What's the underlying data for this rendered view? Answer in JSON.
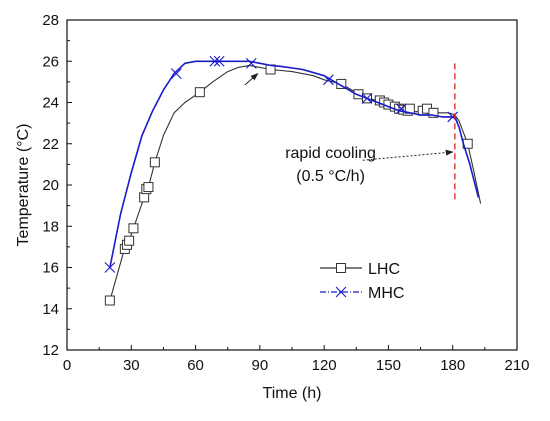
{
  "chart_data": {
    "type": "line",
    "title": "",
    "xlabel": "Time (h)",
    "ylabel": "Temperature (°C)",
    "xlim": [
      0,
      210
    ],
    "ylim": [
      12,
      28
    ],
    "xticks": [
      0,
      30,
      60,
      90,
      120,
      150,
      180,
      210
    ],
    "yticks": [
      12,
      14,
      16,
      18,
      20,
      22,
      24,
      26,
      28
    ],
    "grid": false,
    "legend": "center-right",
    "series": [
      {
        "name": "LHC",
        "color": "#333333",
        "marker": "open-square",
        "points": [
          [
            20,
            14.4
          ],
          [
            23,
            15.5
          ],
          [
            26,
            16.6
          ],
          [
            27,
            16.9
          ],
          [
            28,
            17.1
          ],
          [
            29,
            17.3
          ],
          [
            31,
            17.9
          ],
          [
            35,
            19.1
          ],
          [
            36,
            19.4
          ],
          [
            37,
            19.8
          ],
          [
            38,
            19.9
          ],
          [
            41,
            21.1
          ],
          [
            45,
            22.4
          ],
          [
            50,
            23.5
          ],
          [
            55,
            24.0
          ],
          [
            62,
            24.5
          ],
          [
            68,
            25.0
          ],
          [
            75,
            25.5
          ],
          [
            80,
            25.7
          ],
          [
            85,
            25.8
          ],
          [
            95,
            25.6
          ],
          [
            105,
            25.5
          ],
          [
            115,
            25.3
          ],
          [
            120,
            25.1
          ],
          [
            128,
            24.9
          ],
          [
            133,
            24.6
          ],
          [
            136,
            24.4
          ],
          [
            140,
            24.2
          ],
          [
            145,
            24.1
          ],
          [
            148,
            24.0
          ],
          [
            150,
            23.9
          ],
          [
            153,
            23.8
          ],
          [
            155,
            23.7
          ],
          [
            158,
            23.65
          ],
          [
            160,
            23.6
          ],
          [
            163,
            23.55
          ],
          [
            165,
            23.6
          ],
          [
            168,
            23.6
          ],
          [
            170,
            23.5
          ],
          [
            174,
            23.5
          ],
          [
            178,
            23.5
          ],
          [
            181,
            23.4
          ],
          [
            183,
            23.1
          ],
          [
            187,
            22.0
          ],
          [
            190,
            20.6
          ],
          [
            193,
            19.1
          ]
        ],
        "markers": [
          [
            20,
            14.4
          ],
          [
            27,
            16.9
          ],
          [
            28,
            17.1
          ],
          [
            29,
            17.3
          ],
          [
            31,
            17.9
          ],
          [
            36,
            19.4
          ],
          [
            37,
            19.8
          ],
          [
            38,
            19.9
          ],
          [
            41,
            21.1
          ],
          [
            62,
            24.5
          ],
          [
            95,
            25.6
          ],
          [
            128,
            24.9
          ],
          [
            136,
            24.4
          ],
          [
            140,
            24.2
          ],
          [
            146,
            24.1
          ],
          [
            148,
            24.0
          ],
          [
            150,
            23.9
          ],
          [
            153,
            23.8
          ],
          [
            155,
            23.7
          ],
          [
            157,
            23.65
          ],
          [
            159,
            23.6
          ],
          [
            160,
            23.7
          ],
          [
            166,
            23.6
          ],
          [
            168,
            23.7
          ],
          [
            171,
            23.5
          ],
          [
            187,
            22.0
          ]
        ]
      },
      {
        "name": "MHC",
        "color": "#1a1acc",
        "marker": "x",
        "points": [
          [
            20,
            16.0
          ],
          [
            25,
            18.6
          ],
          [
            30,
            20.6
          ],
          [
            35,
            22.4
          ],
          [
            40,
            23.6
          ],
          [
            45,
            24.6
          ],
          [
            50,
            25.4
          ],
          [
            55,
            25.9
          ],
          [
            60,
            26.0
          ],
          [
            65,
            26.0
          ],
          [
            70,
            26.0
          ],
          [
            75,
            26.0
          ],
          [
            80,
            26.0
          ],
          [
            85,
            26.0
          ],
          [
            90,
            25.9
          ],
          [
            95,
            25.8
          ],
          [
            100,
            25.75
          ],
          [
            110,
            25.6
          ],
          [
            120,
            25.3
          ],
          [
            125,
            25.0
          ],
          [
            130,
            24.7
          ],
          [
            135,
            24.4
          ],
          [
            140,
            24.2
          ],
          [
            145,
            24.0
          ],
          [
            150,
            23.8
          ],
          [
            155,
            23.6
          ],
          [
            160,
            23.5
          ],
          [
            165,
            23.4
          ],
          [
            170,
            23.4
          ],
          [
            175,
            23.3
          ],
          [
            178,
            23.3
          ],
          [
            181,
            23.3
          ],
          [
            183,
            22.8
          ],
          [
            185,
            22.0
          ],
          [
            188,
            21.0
          ],
          [
            190,
            20.2
          ],
          [
            192,
            19.4
          ]
        ],
        "markers": [
          [
            20,
            16.0
          ],
          [
            51,
            25.4
          ],
          [
            69,
            26.0
          ],
          [
            71,
            26.0
          ],
          [
            86,
            25.9
          ],
          [
            122,
            25.1
          ],
          [
            140,
            24.2
          ],
          [
            156,
            23.7
          ],
          [
            180,
            23.3
          ]
        ]
      }
    ],
    "reference_line": {
      "x": 181,
      "color": "#e03030",
      "style": "dashed",
      "y_range": [
        19.3,
        25.9
      ]
    },
    "annotations": [
      {
        "text": "rapid cooling",
        "x": 123,
        "y": 21.3
      },
      {
        "text": "(0.5 °C/h)",
        "x": 123,
        "y": 20.2
      }
    ],
    "annotation_arrows": [
      {
        "from": [
          138,
          21.2
        ],
        "to": [
          180,
          21.6
        ],
        "style": "dotted"
      },
      {
        "from": [
          83,
          24.85
        ],
        "to": [
          89,
          25.4
        ],
        "style": "solid"
      }
    ]
  }
}
